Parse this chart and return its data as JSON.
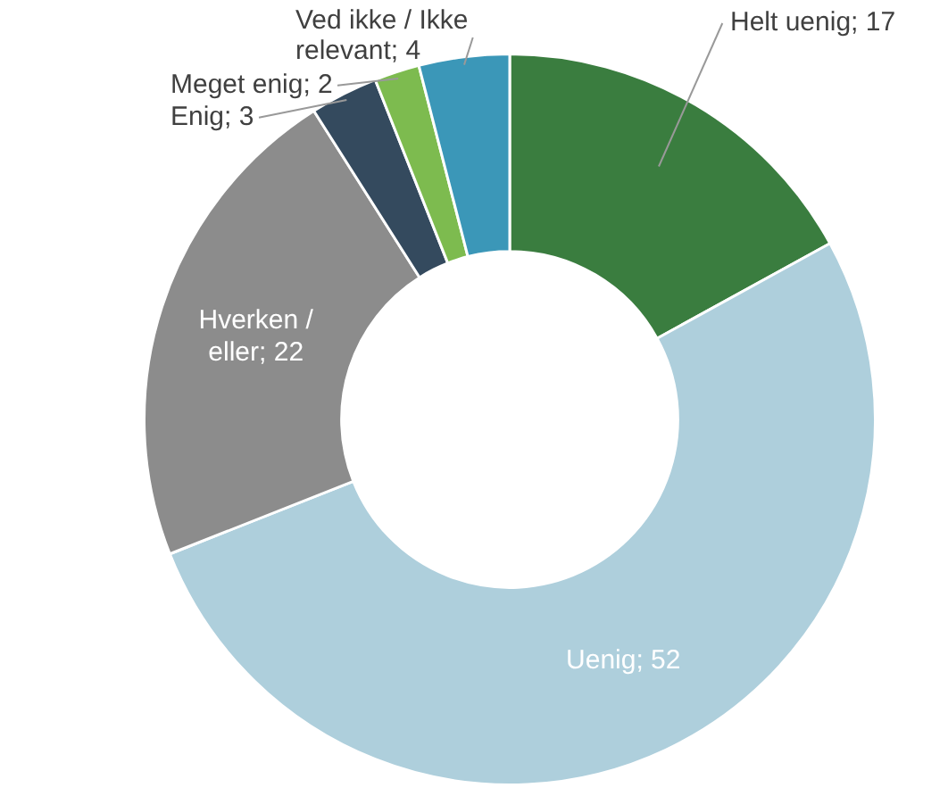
{
  "chart_data": {
    "type": "donut",
    "categories": [
      "Helt uenig",
      "Uenig",
      "Hverken / eller",
      "Enig",
      "Meget enig",
      "Ved ikke / Ikke relevant"
    ],
    "values": [
      17,
      52,
      22,
      3,
      2,
      4
    ],
    "value_labels": [
      "; 17",
      "; 52",
      "; 22",
      "; 3",
      "; 2",
      "; 4"
    ],
    "colors": [
      "#3a7d3f",
      "#aecfdc",
      "#8c8c8c",
      "#344a5e",
      "#7dbb4f",
      "#3b97b8"
    ],
    "legend": false
  }
}
